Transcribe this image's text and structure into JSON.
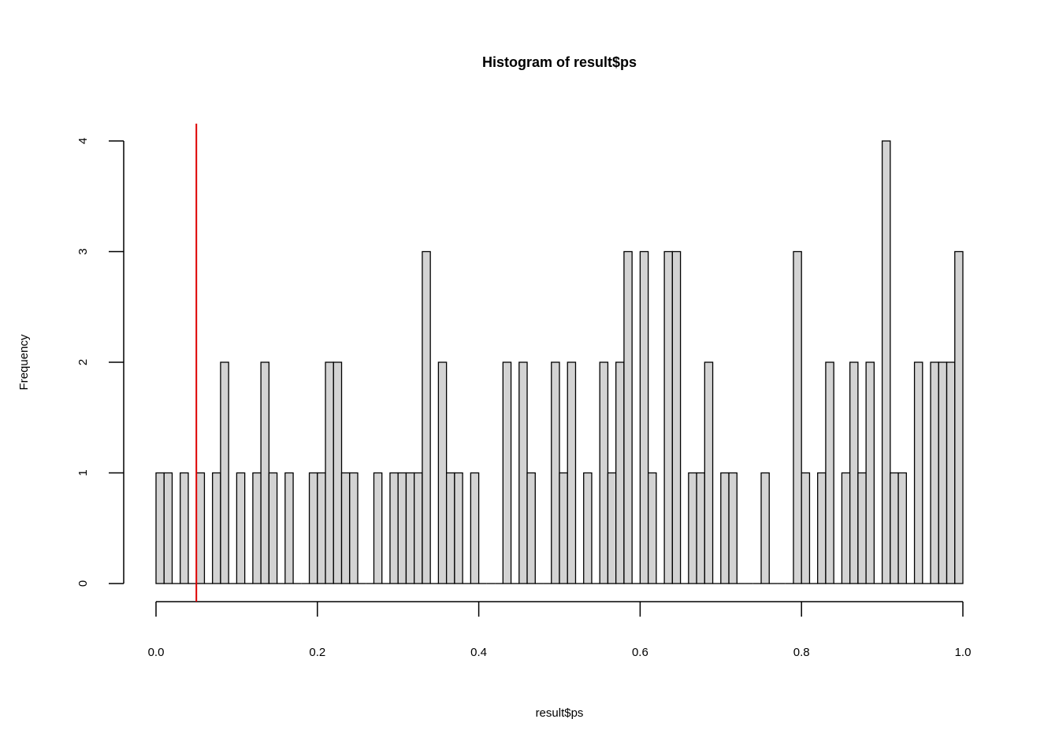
{
  "chart_data": {
    "type": "bar",
    "title": "Histogram of result$ps",
    "xlabel": "result$ps",
    "ylabel": "Frequency",
    "bin_width": 0.01,
    "xlim": [
      0,
      1
    ],
    "ylim": [
      0,
      4
    ],
    "x_ticks": [
      "0.0",
      "0.2",
      "0.4",
      "0.6",
      "0.8",
      "1.0"
    ],
    "y_ticks": [
      "0",
      "1",
      "2",
      "3",
      "4"
    ],
    "counts": [
      1,
      1,
      0,
      1,
      0,
      1,
      0,
      1,
      2,
      0,
      1,
      0,
      1,
      2,
      1,
      0,
      1,
      0,
      0,
      1,
      1,
      2,
      2,
      1,
      1,
      0,
      0,
      1,
      0,
      1,
      1,
      1,
      1,
      3,
      0,
      2,
      1,
      1,
      0,
      1,
      0,
      0,
      0,
      2,
      0,
      2,
      1,
      0,
      0,
      2,
      1,
      2,
      0,
      1,
      0,
      2,
      1,
      2,
      3,
      0,
      3,
      1,
      0,
      3,
      3,
      0,
      1,
      1,
      2,
      0,
      1,
      1,
      0,
      0,
      0,
      1,
      0,
      0,
      0,
      3,
      1,
      0,
      1,
      2,
      0,
      1,
      2,
      1,
      2,
      0,
      4,
      1,
      1,
      0,
      2,
      0,
      2,
      2,
      2,
      3
    ],
    "bar_fill": "#d3d3d3",
    "bar_stroke": "#000000",
    "reference_line": {
      "x": 0.05,
      "color": "#dd0000"
    },
    "grid": false,
    "legend": "none"
  }
}
